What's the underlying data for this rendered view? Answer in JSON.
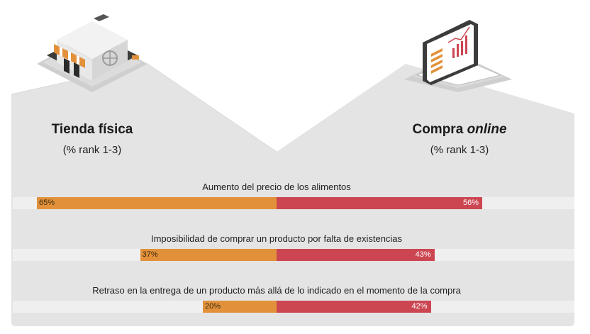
{
  "left_heading": {
    "title": "Tienda física",
    "subtitle": "(% rank 1-3)"
  },
  "right_heading": {
    "title_prefix": "Compra ",
    "title_italic": "online",
    "subtitle": "(% rank 1-3)"
  },
  "icons": {
    "left": "store-icon",
    "right": "laptop-chart-icon"
  },
  "colors": {
    "left_bar": "#e2913a",
    "right_bar": "#cc4652",
    "track": "#efefef",
    "panel": "#e3e3e3"
  },
  "chart_data": {
    "type": "bar",
    "orientation": "horizontal-diverging",
    "categories": [
      "Aumento del precio de los alimentos",
      "Imposibilidad de comprar un producto por falta de existencias",
      "Retraso en la entrega de un producto más allá de lo indicado en el momento de la compra"
    ],
    "series": [
      {
        "name": "Tienda física",
        "values": [
          65,
          37,
          20
        ],
        "labels": [
          "65%",
          "37%",
          "20%"
        ]
      },
      {
        "name": "Compra online",
        "values": [
          56,
          43,
          42
        ],
        "labels": [
          "56%",
          "43%",
          "42%"
        ]
      }
    ],
    "xlim": [
      0,
      100
    ]
  }
}
